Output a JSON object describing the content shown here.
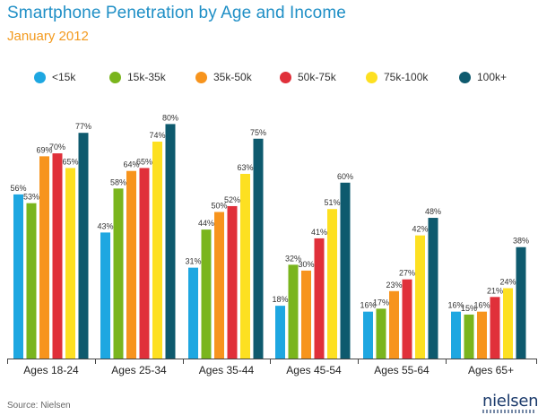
{
  "title": "Smartphone Penetration by Age and Income",
  "subtitle": "January 2012",
  "source": "Source: Nielsen",
  "logo_text": "nielsen",
  "colors": {
    "title": "#1f8fc6",
    "subtitle": "#f39a1e"
  },
  "chart_data": {
    "type": "bar",
    "title": "Smartphone Penetration by Age and Income",
    "subtitle": "January 2012",
    "categories": [
      "Ages 18-24",
      "Ages 25-34",
      "Ages 35-44",
      "Ages 45-54",
      "Ages 55-64",
      "Ages 65+"
    ],
    "series": [
      {
        "name": "<15k",
        "color": "#1ea7e1",
        "values": [
          56,
          43,
          31,
          18,
          16,
          16
        ]
      },
      {
        "name": "15k-35k",
        "color": "#7ab51d",
        "values": [
          53,
          58,
          44,
          32,
          17,
          15
        ]
      },
      {
        "name": "35k-50k",
        "color": "#f7941d",
        "values": [
          69,
          64,
          50,
          30,
          23,
          16
        ]
      },
      {
        "name": "50k-75k",
        "color": "#e0303a",
        "values": [
          70,
          65,
          52,
          41,
          27,
          21
        ]
      },
      {
        "name": "75k-100k",
        "color": "#fde021",
        "values": [
          65,
          74,
          63,
          51,
          42,
          24
        ]
      },
      {
        "name": "100k+",
        "color": "#0e5a6e",
        "values": [
          77,
          80,
          75,
          60,
          48,
          38
        ]
      }
    ],
    "value_suffix": "%",
    "ylim": [
      0,
      100
    ],
    "grid": false,
    "legend": "top"
  }
}
